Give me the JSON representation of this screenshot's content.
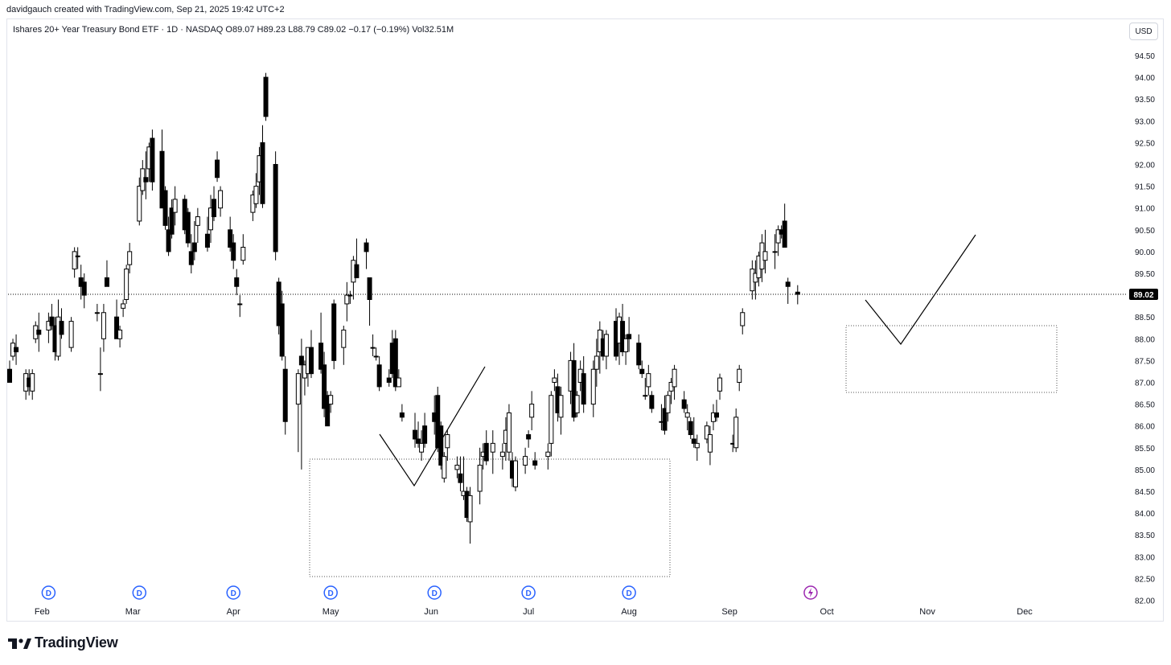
{
  "header": {
    "attribution": "davidgauch created with TradingView.com, Sep 21, 2025 19:42 UTC+2"
  },
  "legend": {
    "text": "Ishares 20+ Year Treasury Bond ETF · 1D · NASDAQ  O89.07  H89.23  L88.79  C89.02  −0.17 (−0.19%)  Vol32.51M"
  },
  "currency_label": "USD",
  "branding": {
    "name": "TradingView"
  },
  "colors": {
    "up_candle_fill": "#ffffff",
    "down_candle_fill": "#000000",
    "candle_outline": "#000000",
    "dividend_marker": "#2962ff",
    "earnings_marker": "#9c27b0",
    "price_label_bg": "#000000"
  },
  "chart_data": {
    "type": "candlestick",
    "symbol": "Ishares 20+ Year Treasury Bond ETF",
    "timeframe": "1D",
    "exchange": "NASDAQ",
    "ohlc_last": {
      "open": 89.07,
      "high": 89.23,
      "low": 88.79,
      "close": 89.02,
      "change": -0.17,
      "change_pct": -0.19,
      "volume": "32.51M"
    },
    "last_price_label": "89.02",
    "y_axis": {
      "range": [
        82.0,
        94.8
      ],
      "ticks": [
        "94.50",
        "94.00",
        "93.50",
        "93.00",
        "92.50",
        "92.00",
        "91.50",
        "91.00",
        "90.50",
        "90.00",
        "89.50",
        "88.50",
        "88.00",
        "87.50",
        "87.00",
        "86.50",
        "86.00",
        "85.50",
        "85.00",
        "84.50",
        "84.00",
        "83.50",
        "83.00",
        "82.50",
        "82.00"
      ]
    },
    "x_axis": {
      "months": [
        "Feb",
        "Mar",
        "Apr",
        "May",
        "Jun",
        "Jul",
        "Aug",
        "Sep",
        "Oct",
        "Nov",
        "Dec"
      ],
      "range": [
        "2025-01-22",
        "2025-12-31"
      ]
    },
    "dividend_markers": {
      "label": "D",
      "dates": [
        "2025-02-03",
        "2025-03-03",
        "2025-04-01",
        "2025-05-01",
        "2025-06-02",
        "2025-07-01",
        "2025-08-01"
      ]
    },
    "event_markers": [
      {
        "type": "lightning",
        "date": "2025-09-26"
      }
    ],
    "candles": [
      [
        "2025-01-22",
        87.3,
        87.5,
        87.0,
        87.0
      ],
      [
        "2025-01-23",
        87.6,
        88.0,
        87.5,
        87.9
      ],
      [
        "2025-01-24",
        87.8,
        88.1,
        87.4,
        87.7
      ],
      [
        "2025-01-27",
        86.8,
        87.3,
        86.6,
        87.2
      ],
      [
        "2025-01-28",
        87.1,
        87.3,
        86.7,
        86.9
      ],
      [
        "2025-01-29",
        86.8,
        87.3,
        86.6,
        87.2
      ],
      [
        "2025-01-30",
        88.0,
        88.4,
        87.9,
        88.3
      ],
      [
        "2025-01-31",
        88.2,
        88.6,
        87.7,
        88.1
      ],
      [
        "2025-02-03",
        88.2,
        88.6,
        87.9,
        88.4
      ],
      [
        "2025-02-04",
        88.5,
        88.8,
        88.2,
        88.3
      ],
      [
        "2025-02-05",
        88.3,
        88.5,
        87.5,
        87.7
      ],
      [
        "2025-02-06",
        87.6,
        88.9,
        87.5,
        88.5
      ],
      [
        "2025-02-07",
        88.4,
        88.7,
        88.0,
        88.1
      ],
      [
        "2025-02-10",
        87.8,
        88.5,
        87.7,
        88.4
      ],
      [
        "2025-02-11",
        89.6,
        90.1,
        89.4,
        90.0
      ],
      [
        "2025-02-12",
        89.9,
        90.1,
        89.6,
        89.9
      ],
      [
        "2025-02-13",
        89.4,
        89.7,
        88.9,
        89.2
      ],
      [
        "2025-02-14",
        89.3,
        89.5,
        88.7,
        89.0
      ],
      [
        "2025-02-18",
        88.6,
        88.8,
        88.4,
        88.6
      ],
      [
        "2025-02-19",
        87.2,
        87.8,
        86.8,
        87.2
      ],
      [
        "2025-02-20",
        88.0,
        88.8,
        87.7,
        88.6
      ],
      [
        "2025-02-21",
        89.4,
        89.8,
        89.2,
        89.2
      ],
      [
        "2025-02-24",
        88.5,
        88.9,
        88.0,
        88.0
      ],
      [
        "2025-02-25",
        88.0,
        88.3,
        87.8,
        88.2
      ],
      [
        "2025-02-26",
        88.7,
        88.9,
        88.5,
        88.8
      ],
      [
        "2025-02-27",
        88.9,
        89.7,
        88.8,
        89.6
      ],
      [
        "2025-02-28",
        89.7,
        90.2,
        89.5,
        90.0
      ],
      [
        "2025-03-03",
        90.7,
        91.7,
        90.6,
        91.5
      ],
      [
        "2025-03-04",
        91.4,
        92.1,
        91.3,
        91.9
      ],
      [
        "2025-03-05",
        91.7,
        92.3,
        91.2,
        91.6
      ],
      [
        "2025-03-06",
        91.9,
        92.5,
        91.6,
        92.4
      ],
      [
        "2025-03-07",
        92.6,
        92.8,
        91.4,
        91.6
      ],
      [
        "2025-03-10",
        92.3,
        92.8,
        91.0,
        91.0
      ],
      [
        "2025-03-11",
        91.4,
        91.5,
        90.5,
        90.6
      ],
      [
        "2025-03-12",
        90.5,
        90.8,
        89.9,
        90.0
      ],
      [
        "2025-03-13",
        91.0,
        91.2,
        90.3,
        90.4
      ],
      [
        "2025-03-14",
        90.9,
        91.5,
        90.6,
        91.2
      ],
      [
        "2025-03-17",
        91.2,
        91.3,
        90.4,
        90.5
      ],
      [
        "2025-03-18",
        90.9,
        91.0,
        90.1,
        90.2
      ],
      [
        "2025-03-19",
        90.0,
        90.4,
        89.5,
        89.7
      ],
      [
        "2025-03-20",
        90.2,
        90.7,
        89.8,
        90.0
      ],
      [
        "2025-03-21",
        90.6,
        91.0,
        90.2,
        90.8
      ],
      [
        "2025-03-24",
        90.4,
        90.8,
        90.0,
        90.1
      ],
      [
        "2025-03-25",
        90.5,
        91.3,
        90.2,
        91.0
      ],
      [
        "2025-03-26",
        91.2,
        91.5,
        90.7,
        90.8
      ],
      [
        "2025-03-27",
        92.1,
        92.3,
        91.6,
        91.7
      ],
      [
        "2025-03-28",
        91.0,
        91.5,
        90.8,
        91.4
      ],
      [
        "2025-03-31",
        90.5,
        90.8,
        90.0,
        90.1
      ],
      [
        "2025-04-01",
        90.2,
        90.4,
        89.6,
        89.8
      ],
      [
        "2025-04-02",
        89.4,
        89.6,
        89.0,
        89.2
      ],
      [
        "2025-04-03",
        88.8,
        89.0,
        88.5,
        88.8
      ],
      [
        "2025-04-04",
        89.8,
        90.4,
        89.7,
        90.1
      ],
      [
        "2025-04-07",
        90.9,
        91.4,
        90.7,
        91.3
      ],
      [
        "2025-04-08",
        91.1,
        91.8,
        91.0,
        91.5
      ],
      [
        "2025-04-09",
        91.6,
        92.4,
        91.3,
        92.2
      ],
      [
        "2025-04-10",
        92.5,
        92.9,
        91.0,
        91.1
      ],
      [
        "2025-04-11",
        94.0,
        94.1,
        93.0,
        93.1
      ],
      [
        "2025-04-14",
        92.0,
        92.3,
        89.8,
        90.0
      ],
      [
        "2025-04-15",
        89.3,
        89.4,
        88.1,
        88.3
      ],
      [
        "2025-04-16",
        88.8,
        89.1,
        87.5,
        87.6
      ],
      [
        "2025-04-17",
        87.3,
        87.6,
        85.8,
        86.1
      ],
      [
        "2025-04-21",
        86.5,
        87.3,
        85.4,
        87.2
      ],
      [
        "2025-04-22",
        87.6,
        88.0,
        85.0,
        87.4
      ],
      [
        "2025-04-23",
        87.1,
        87.5,
        86.7,
        87.4
      ],
      [
        "2025-04-24",
        87.2,
        87.8,
        86.9,
        87.8
      ],
      [
        "2025-04-25",
        87.8,
        88.2,
        87.1,
        87.2
      ],
      [
        "2025-04-28",
        87.9,
        88.6,
        87.2,
        87.3
      ],
      [
        "2025-04-29",
        87.4,
        87.7,
        86.2,
        86.4
      ],
      [
        "2025-04-30",
        86.7,
        86.8,
        86.0,
        86.0
      ],
      [
        "2025-05-01",
        86.5,
        86.8,
        86.3,
        86.7
      ],
      [
        "2025-05-02",
        88.8,
        88.9,
        87.3,
        87.5
      ],
      [
        "2025-05-05",
        87.8,
        88.3,
        87.4,
        88.2
      ],
      [
        "2025-05-06",
        88.8,
        89.3,
        88.4,
        89.0
      ],
      [
        "2025-05-07",
        89.0,
        89.1,
        88.8,
        89.0
      ],
      [
        "2025-05-08",
        89.3,
        89.9,
        88.9,
        89.8
      ],
      [
        "2025-05-09",
        89.7,
        90.3,
        89.4,
        89.4
      ],
      [
        "2025-05-12",
        90.2,
        90.3,
        89.6,
        90.0
      ],
      [
        "2025-05-13",
        89.4,
        89.4,
        88.3,
        88.9
      ],
      [
        "2025-05-14",
        87.8,
        88.1,
        87.6,
        87.8
      ],
      [
        "2025-05-15",
        87.6,
        87.8,
        87.5,
        87.6
      ],
      [
        "2025-05-16",
        87.4,
        87.6,
        86.8,
        86.9
      ],
      [
        "2025-05-19",
        87.1,
        87.3,
        86.9,
        87.0
      ],
      [
        "2025-05-20",
        87.9,
        88.2,
        87.1,
        87.2
      ],
      [
        "2025-05-21",
        88.0,
        88.2,
        86.8,
        86.9
      ],
      [
        "2025-05-22",
        86.9,
        87.3,
        86.9,
        87.1
      ],
      [
        "2025-05-23",
        86.3,
        86.5,
        86.1,
        86.2
      ],
      [
        "2025-05-27",
        85.9,
        86.3,
        85.5,
        85.7
      ],
      [
        "2025-05-28",
        85.7,
        86.1,
        85.5,
        85.6
      ],
      [
        "2025-05-29",
        85.4,
        85.9,
        85.2,
        85.6
      ],
      [
        "2025-05-30",
        86.0,
        86.3,
        85.5,
        85.6
      ],
      [
        "2025-06-02",
        86.3,
        86.7,
        85.8,
        86.1
      ],
      [
        "2025-06-03",
        86.7,
        86.9,
        85.4,
        85.5
      ],
      [
        "2025-06-04",
        86.0,
        86.1,
        85.0,
        85.1
      ],
      [
        "2025-06-05",
        84.8,
        85.4,
        84.7,
        85.3
      ],
      [
        "2025-06-06",
        85.5,
        85.9,
        85.2,
        85.8
      ],
      [
        "2025-06-09",
        85.0,
        85.3,
        84.8,
        85.1
      ],
      [
        "2025-06-10",
        84.9,
        85.3,
        84.5,
        84.7
      ],
      [
        "2025-06-11",
        84.4,
        85.3,
        84.3,
        84.5
      ],
      [
        "2025-06-12",
        84.5,
        84.6,
        83.8,
        83.9
      ],
      [
        "2025-06-13",
        83.8,
        84.6,
        83.3,
        84.4
      ],
      [
        "2025-06-16",
        84.5,
        85.5,
        84.2,
        85.1
      ],
      [
        "2025-06-17",
        85.3,
        85.6,
        85.0,
        85.4
      ],
      [
        "2025-06-18",
        85.6,
        85.9,
        85.1,
        85.2
      ],
      [
        "2025-06-20",
        85.4,
        85.9,
        84.9,
        85.6
      ],
      [
        "2025-06-23",
        85.3,
        85.6,
        85.0,
        85.4
      ],
      [
        "2025-06-24",
        85.6,
        86.2,
        85.2,
        85.9
      ],
      [
        "2025-06-25",
        85.4,
        86.5,
        85.2,
        86.3
      ],
      [
        "2025-06-26",
        85.2,
        85.4,
        84.6,
        84.8
      ],
      [
        "2025-06-27",
        84.6,
        85.3,
        84.5,
        85.2
      ],
      [
        "2025-06-30",
        85.1,
        85.5,
        84.9,
        85.3
      ],
      [
        "2025-07-01",
        85.8,
        85.9,
        85.5,
        85.7
      ],
      [
        "2025-07-02",
        86.2,
        86.8,
        85.9,
        86.5
      ],
      [
        "2025-07-03",
        85.2,
        85.4,
        85.0,
        85.1
      ],
      [
        "2025-07-07",
        85.3,
        85.6,
        85.0,
        85.4
      ],
      [
        "2025-07-08",
        85.6,
        86.8,
        85.3,
        86.7
      ],
      [
        "2025-07-09",
        87.0,
        87.3,
        86.8,
        87.1
      ],
      [
        "2025-07-10",
        86.9,
        87.2,
        86.1,
        86.3
      ],
      [
        "2025-07-11",
        86.2,
        86.9,
        85.8,
        86.7
      ],
      [
        "2025-07-14",
        86.8,
        87.7,
        86.5,
        87.5
      ],
      [
        "2025-07-15",
        87.5,
        87.9,
        86.1,
        86.2
      ],
      [
        "2025-07-16",
        86.3,
        86.8,
        86.2,
        86.7
      ],
      [
        "2025-07-17",
        87.0,
        87.5,
        86.8,
        87.3
      ],
      [
        "2025-07-18",
        87.2,
        87.6,
        86.3,
        86.5
      ],
      [
        "2025-07-21",
        86.5,
        87.5,
        86.2,
        87.3
      ],
      [
        "2025-07-22",
        87.3,
        88.0,
        86.9,
        87.6
      ],
      [
        "2025-07-23",
        87.7,
        88.4,
        87.2,
        88.2
      ],
      [
        "2025-07-24",
        88.0,
        88.2,
        87.5,
        87.6
      ],
      [
        "2025-07-25",
        87.6,
        88.2,
        87.3,
        88.1
      ],
      [
        "2025-07-28",
        88.4,
        88.7,
        87.5,
        87.6
      ],
      [
        "2025-07-29",
        87.9,
        88.6,
        87.4,
        88.5
      ],
      [
        "2025-07-30",
        88.4,
        88.8,
        87.6,
        87.7
      ],
      [
        "2025-07-31",
        87.7,
        88.1,
        87.4,
        88.0
      ],
      [
        "2025-08-01",
        88.1,
        88.5,
        87.7,
        88.0
      ],
      [
        "2025-08-04",
        87.9,
        88.1,
        87.3,
        87.4
      ],
      [
        "2025-08-05",
        87.3,
        87.5,
        87.1,
        87.2
      ],
      [
        "2025-08-06",
        86.7,
        87.1,
        86.6,
        86.7
      ],
      [
        "2025-08-07",
        86.9,
        87.4,
        86.7,
        87.2
      ],
      [
        "2025-08-08",
        86.7,
        86.8,
        86.3,
        86.4
      ],
      [
        "2025-08-11",
        86.1,
        86.5,
        85.9,
        86.1
      ],
      [
        "2025-08-12",
        86.4,
        86.7,
        85.8,
        85.9
      ],
      [
        "2025-08-13",
        86.3,
        86.8,
        86.1,
        86.7
      ],
      [
        "2025-08-14",
        86.8,
        87.1,
        86.5,
        87.0
      ],
      [
        "2025-08-15",
        86.9,
        87.4,
        86.6,
        87.3
      ],
      [
        "2025-08-18",
        86.6,
        86.8,
        86.3,
        86.4
      ],
      [
        "2025-08-19",
        86.2,
        86.5,
        85.9,
        86.3
      ],
      [
        "2025-08-20",
        86.1,
        86.2,
        85.7,
        85.8
      ],
      [
        "2025-08-21",
        85.7,
        86.2,
        85.5,
        85.6
      ],
      [
        "2025-08-22",
        85.5,
        85.8,
        85.2,
        85.6
      ],
      [
        "2025-08-25",
        85.7,
        86.1,
        85.6,
        86.0
      ],
      [
        "2025-08-26",
        85.4,
        86.0,
        85.1,
        85.8
      ],
      [
        "2025-08-27",
        86.1,
        86.5,
        85.9,
        86.3
      ],
      [
        "2025-08-28",
        86.3,
        86.6,
        86.1,
        86.2
      ],
      [
        "2025-08-29",
        86.8,
        87.2,
        86.6,
        87.1
      ],
      [
        "2025-09-02",
        85.6,
        85.8,
        85.4,
        85.6
      ],
      [
        "2025-09-03",
        85.5,
        86.4,
        85.4,
        86.2
      ],
      [
        "2025-09-04",
        87.0,
        87.4,
        86.8,
        87.3
      ],
      [
        "2025-09-05",
        88.3,
        88.7,
        88.1,
        88.6
      ],
      [
        "2025-09-08",
        89.1,
        89.8,
        88.9,
        89.6
      ],
      [
        "2025-09-09",
        89.3,
        89.8,
        88.9,
        89.5
      ],
      [
        "2025-09-10",
        89.4,
        90.0,
        89.2,
        89.9
      ],
      [
        "2025-09-11",
        89.6,
        90.4,
        89.3,
        90.2
      ],
      [
        "2025-09-12",
        89.8,
        90.5,
        89.5,
        90.0
      ],
      [
        "2025-09-15",
        90.0,
        90.4,
        89.6,
        90.0
      ],
      [
        "2025-09-16",
        90.2,
        90.6,
        89.9,
        90.5
      ],
      [
        "2025-09-17",
        90.5,
        90.6,
        90.3,
        90.4
      ],
      [
        "2025-09-18",
        90.7,
        91.1,
        90.1,
        90.1
      ],
      [
        "2025-09-19",
        89.3,
        89.4,
        88.8,
        89.2
      ],
      [
        "2025-09-22",
        89.07,
        89.23,
        88.79,
        89.02
      ]
    ]
  }
}
